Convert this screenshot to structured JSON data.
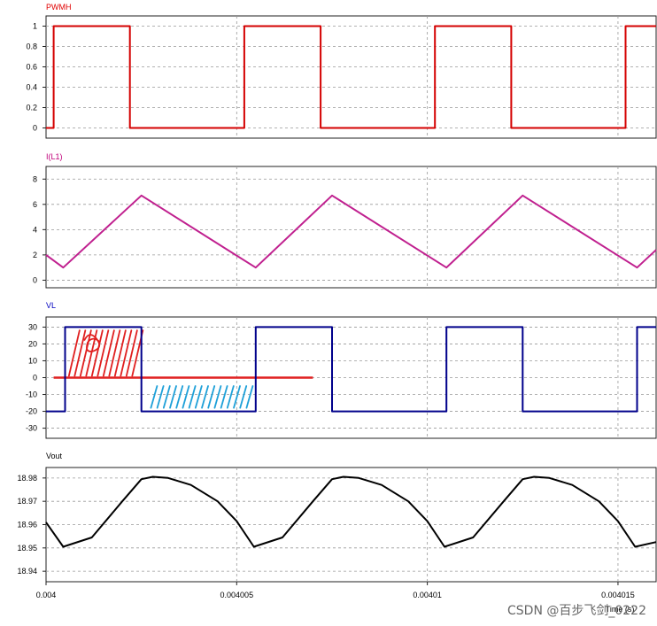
{
  "chart_data": [
    {
      "type": "line",
      "title": "PWMH",
      "title_color": "#e00000",
      "line_color": "#d40000",
      "ylim": [
        -0.1,
        1.1
      ],
      "y_ticks": [
        {
          "value": 0,
          "label": "0"
        },
        {
          "value": 0.2,
          "label": "0.2"
        },
        {
          "value": 0.4,
          "label": "0.4"
        },
        {
          "value": 0.6,
          "label": "0.6"
        },
        {
          "value": 0.8,
          "label": "0.8"
        },
        {
          "value": 1,
          "label": "1"
        }
      ],
      "grid": true,
      "series": [
        {
          "x_us": [
            0,
            0.2,
            0.2,
            2.2,
            2.2,
            5.2,
            5.2,
            7.2,
            7.2,
            10.2,
            10.2,
            12.2,
            12.2,
            15.2,
            15.2,
            16
          ],
          "y": [
            0,
            0,
            1,
            1,
            0,
            0,
            1,
            1,
            0,
            0,
            1,
            1,
            0,
            0,
            1,
            1
          ]
        }
      ]
    },
    {
      "type": "line",
      "title": "I(L1)",
      "title_color": "#c0007a",
      "line_color": "#c0208f",
      "ylim": [
        -0.6,
        9
      ],
      "y_ticks": [
        {
          "value": 0,
          "label": "0"
        },
        {
          "value": 2,
          "label": "2"
        },
        {
          "value": 4,
          "label": "4"
        },
        {
          "value": 6,
          "label": "6"
        },
        {
          "value": 8,
          "label": "8"
        }
      ],
      "grid": true,
      "series": [
        {
          "x_us": [
            0,
            0.45,
            2.5,
            5.5,
            7.5,
            10.5,
            12.5,
            15.5,
            16
          ],
          "y": [
            2.0,
            1.0,
            6.7,
            1.0,
            6.7,
            1.0,
            6.7,
            1.0,
            2.4
          ]
        }
      ]
    },
    {
      "type": "line",
      "title": "VL",
      "title_color": "#0000c0",
      "line_color": "#00008b",
      "ylim": [
        -36,
        36
      ],
      "y_ticks": [
        {
          "value": -30,
          "label": "-30"
        },
        {
          "value": -20,
          "label": "-20"
        },
        {
          "value": -10,
          "label": "-10"
        },
        {
          "value": 0,
          "label": "0"
        },
        {
          "value": 10,
          "label": "10"
        },
        {
          "value": 20,
          "label": "20"
        },
        {
          "value": 30,
          "label": "30"
        }
      ],
      "grid": true,
      "series": [
        {
          "x_us": [
            0,
            0.5,
            0.5,
            2.5,
            2.5,
            5.5,
            5.5,
            7.5,
            7.5,
            10.5,
            10.5,
            12.5,
            12.5,
            15.5,
            15.5,
            16
          ],
          "y": [
            -20,
            -20,
            30,
            30,
            -20,
            -20,
            30,
            30,
            -20,
            -20,
            30,
            30,
            -20,
            -20,
            30,
            30
          ]
        }
      ],
      "annotation": {
        "zero_line_x_us": [
          0.2,
          7.0
        ],
        "zero_line_color": "#e02020",
        "red_hatch_color": "#e02020",
        "blue_hatch_color": "#1ea0d8"
      }
    },
    {
      "type": "line",
      "title": "Vout",
      "title_color": "#000000",
      "line_color": "#000000",
      "ylim": [
        18.9355,
        18.9845
      ],
      "y_ticks": [
        {
          "value": 18.94,
          "label": "18.94"
        },
        {
          "value": 18.95,
          "label": "18.95"
        },
        {
          "value": 18.96,
          "label": "18.96"
        },
        {
          "value": 18.97,
          "label": "18.97"
        },
        {
          "value": 18.98,
          "label": "18.98"
        }
      ],
      "x_ticks": [
        {
          "value_us": 0,
          "label": "0.004"
        },
        {
          "value_us": 5,
          "label": "0.004005"
        },
        {
          "value_us": 10,
          "label": "0.00401"
        },
        {
          "value_us": 15,
          "label": "0.004015"
        }
      ],
      "xlabel": "Time (s)",
      "grid": true,
      "series": [
        {
          "x_us": [
            0,
            0.45,
            1.2,
            2.0,
            2.5,
            2.8,
            3.2,
            3.8,
            4.5,
            5.0,
            5.45,
            6.2,
            7.0,
            7.5,
            7.8,
            8.2,
            8.8,
            9.5,
            10.0,
            10.45,
            11.2,
            12.0,
            12.5,
            12.8,
            13.2,
            13.8,
            14.5,
            15.0,
            15.45,
            16
          ],
          "y": [
            18.961,
            18.9505,
            18.9545,
            18.97,
            18.9795,
            18.9805,
            18.98,
            18.977,
            18.97,
            18.9615,
            18.9505,
            18.9545,
            18.97,
            18.9795,
            18.9805,
            18.98,
            18.977,
            18.97,
            18.9615,
            18.9505,
            18.9545,
            18.97,
            18.9795,
            18.9805,
            18.98,
            18.977,
            18.97,
            18.9615,
            18.9505,
            18.9525
          ]
        }
      ]
    }
  ],
  "watermark": "CSDN @百步飞剑_0222"
}
